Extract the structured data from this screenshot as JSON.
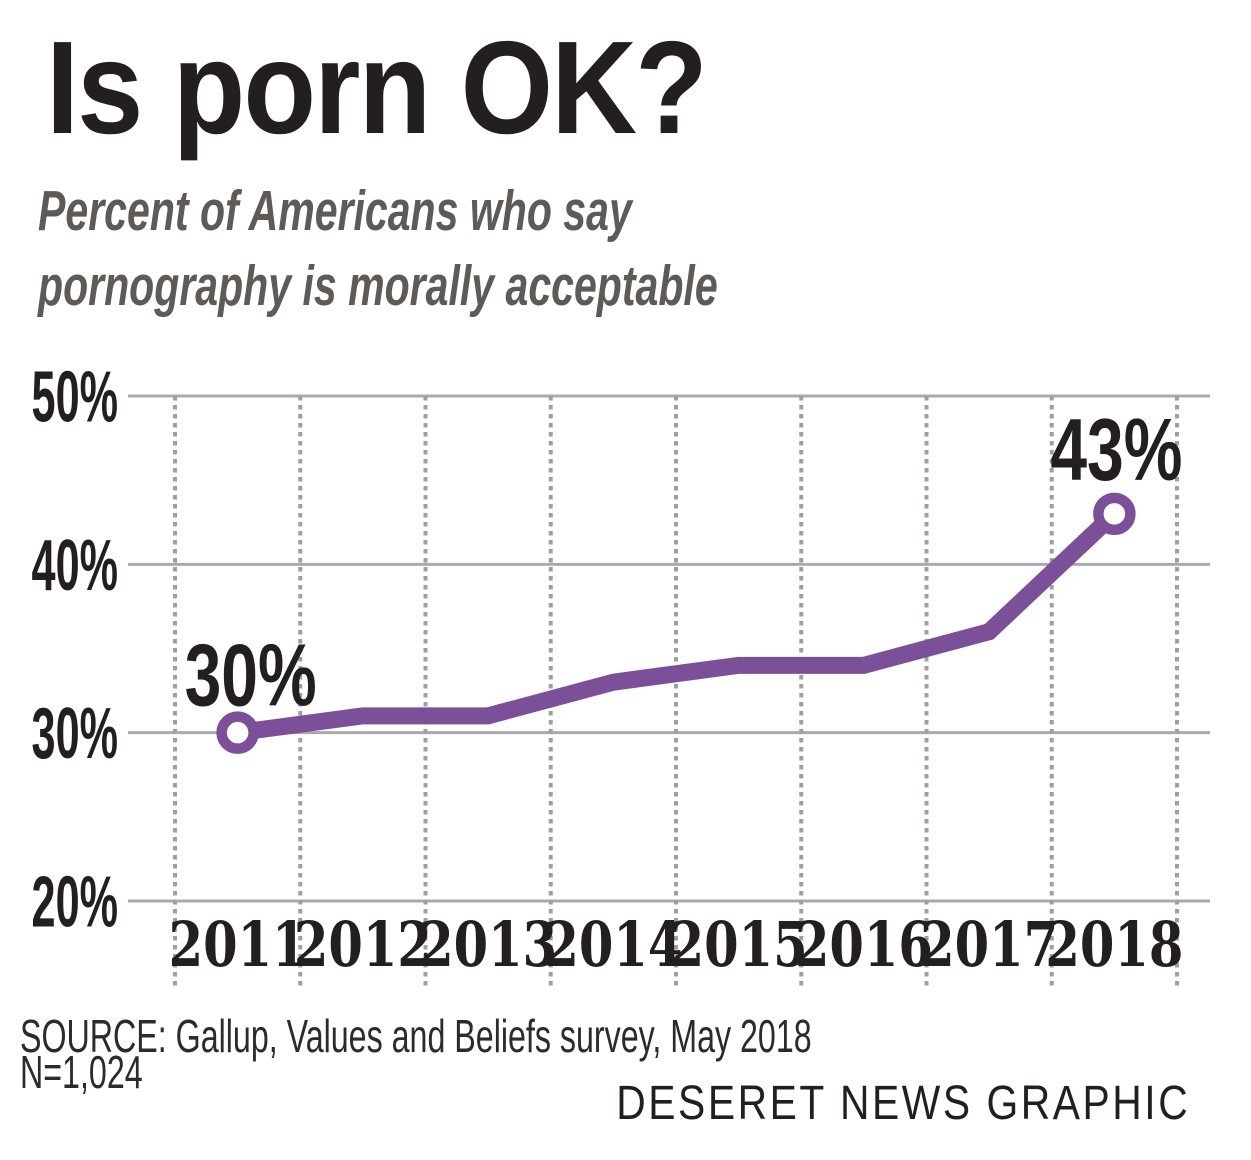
{
  "title": "Is porn OK?",
  "subtitle": {
    "line1": "Percent of Americans who say",
    "line2": "pornography is morally acceptable"
  },
  "footer": {
    "source": "SOURCE: Gallup, Values and Beliefs survey, May 2018",
    "sample": "N=1,024",
    "credit": "DESERET NEWS GRAPHIC"
  },
  "chart_data": {
    "type": "line",
    "title": "Is porn OK?",
    "subtitle": "Percent of Americans who say pornography is morally acceptable",
    "x": [
      "2011",
      "2012",
      "2013",
      "2014",
      "2015",
      "2016",
      "2017",
      "2018"
    ],
    "series": [
      {
        "name": "Percent saying pornography is morally acceptable",
        "values": [
          30,
          31,
          31,
          33,
          34,
          34,
          36,
          43
        ]
      }
    ],
    "ylim": [
      20,
      50
    ],
    "yticks": [
      {
        "value": 50,
        "label": "50%"
      },
      {
        "value": 40,
        "label": "40%"
      },
      {
        "value": 30,
        "label": "30%"
      },
      {
        "value": 20,
        "label": "20%"
      }
    ],
    "grid": {
      "horizontal": "solid",
      "vertical": "dotted",
      "legend": "none"
    },
    "markers": [
      "2011",
      "2018"
    ],
    "annotations": [
      {
        "x": "2011",
        "text": "30%"
      },
      {
        "x": "2018",
        "text": "43%"
      }
    ],
    "colors": {
      "line": "#7c4f99",
      "solid_grid": "#a8aaad",
      "dotted_grid": "#9da0a3",
      "text": "#231f20"
    }
  }
}
